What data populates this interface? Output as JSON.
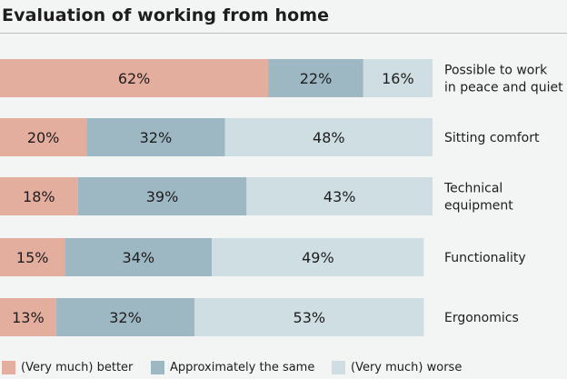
{
  "chart_data": {
    "type": "bar",
    "orientation": "horizontal",
    "stacked": true,
    "title": "Evaluation of working from home",
    "categories": [
      [
        "Possible to work",
        "in peace and quiet"
      ],
      [
        "Sitting comfort"
      ],
      [
        "Technical",
        "equipment"
      ],
      [
        "Functionality"
      ],
      [
        "Ergonomics"
      ]
    ],
    "series": [
      {
        "name": "(Very much) better",
        "values": [
          62,
          20,
          18,
          15,
          13
        ],
        "labels": [
          "62%",
          "20%",
          "18%",
          "15%",
          "13%"
        ]
      },
      {
        "name": "Approximately the same",
        "values": [
          22,
          32,
          39,
          34,
          32
        ],
        "labels": [
          "22%",
          "32%",
          "39%",
          "34%",
          "32%"
        ]
      },
      {
        "name": "(Very much) worse",
        "values": [
          16,
          48,
          43,
          49,
          53
        ],
        "labels": [
          "16%",
          "48%",
          "43%",
          "49%",
          "53%"
        ]
      }
    ],
    "colors": [
      "#e4ae9f",
      "#9db8c3",
      "#cfdee3"
    ],
    "xlim": [
      0,
      100
    ],
    "legend": "bottom",
    "grid": false
  }
}
